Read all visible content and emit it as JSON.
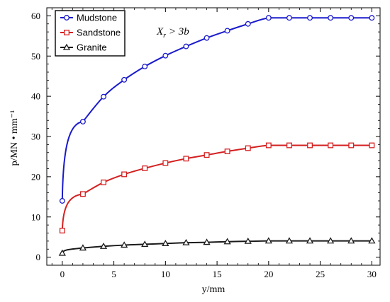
{
  "chart_data": {
    "type": "line",
    "xlabel": "y/mm",
    "ylabel": "p/MN • mm⁻¹",
    "xlim": [
      -1.5,
      30.8
    ],
    "ylim": [
      -2,
      62
    ],
    "xticks": [
      0,
      5,
      10,
      15,
      20,
      25,
      30
    ],
    "yticks": [
      0,
      10,
      20,
      30,
      40,
      50,
      60
    ],
    "xminor_step": 1,
    "yminor_step": 2,
    "grid": false,
    "legend_position": "top-left",
    "annotation": {
      "main": "X",
      "sub": "r",
      "rest": " > 3b"
    },
    "series": [
      {
        "name": "Mudstone",
        "color": "#1a1acd",
        "marker": "circle",
        "x": [
          0,
          2,
          4,
          6,
          8,
          10,
          12,
          14,
          16,
          18,
          20,
          22,
          24,
          26,
          28,
          30
        ],
        "y": [
          14.0,
          33.7,
          39.9,
          44.1,
          47.4,
          50.1,
          52.4,
          54.5,
          56.3,
          58.0,
          59.5,
          59.5,
          59.5,
          59.5,
          59.5,
          59.5
        ]
      },
      {
        "name": "Sandstone",
        "color": "#d42020",
        "marker": "square",
        "x": [
          0,
          2,
          4,
          6,
          8,
          10,
          12,
          14,
          16,
          18,
          20,
          22,
          24,
          26,
          28,
          30
        ],
        "y": [
          6.6,
          15.7,
          18.6,
          20.6,
          22.1,
          23.4,
          24.5,
          25.4,
          26.3,
          27.1,
          27.8,
          27.8,
          27.8,
          27.8,
          27.8,
          27.8
        ]
      },
      {
        "name": "Granite",
        "color": "#1a1a1a",
        "marker": "triangle",
        "x": [
          0,
          2,
          4,
          6,
          8,
          10,
          12,
          14,
          16,
          18,
          20,
          22,
          24,
          26,
          28,
          30
        ],
        "y": [
          1.0,
          2.3,
          2.7,
          3.0,
          3.2,
          3.4,
          3.6,
          3.7,
          3.85,
          3.95,
          4.05,
          4.05,
          4.05,
          4.05,
          4.05,
          4.05
        ]
      }
    ]
  }
}
